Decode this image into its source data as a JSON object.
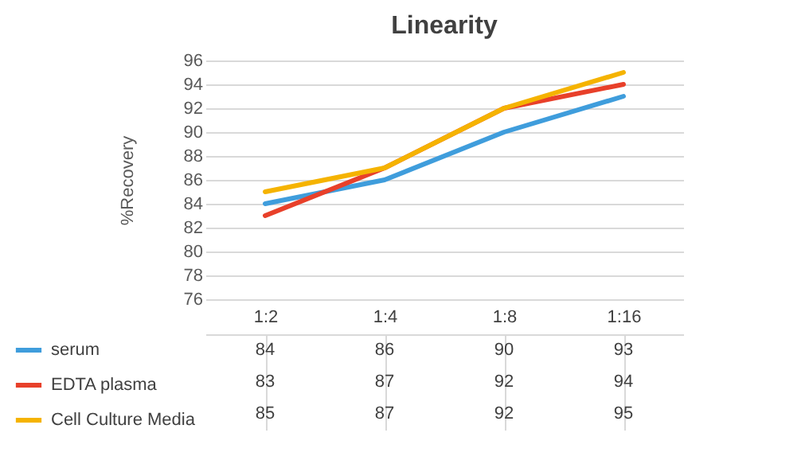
{
  "chart_data": {
    "type": "line",
    "title": "Linearity",
    "ylabel": "%Recovery",
    "categories": [
      "1:2",
      "1:4",
      "1:8",
      "1:16"
    ],
    "series": [
      {
        "name": "serum",
        "color": "#3f9ddc",
        "values": [
          84,
          86,
          90,
          93
        ]
      },
      {
        "name": "EDTA plasma",
        "color": "#e8402a",
        "values": [
          83,
          87,
          92,
          94
        ]
      },
      {
        "name": "Cell Culture Media",
        "color": "#f5b300",
        "values": [
          85,
          87,
          92,
          95
        ]
      }
    ],
    "ylim": [
      76,
      96
    ],
    "yticks": [
      76,
      78,
      80,
      82,
      84,
      86,
      88,
      90,
      92,
      94,
      96
    ],
    "grid": "y",
    "legend": "bottom",
    "data_labels": true,
    "line_style": "solid",
    "marker": "none"
  }
}
